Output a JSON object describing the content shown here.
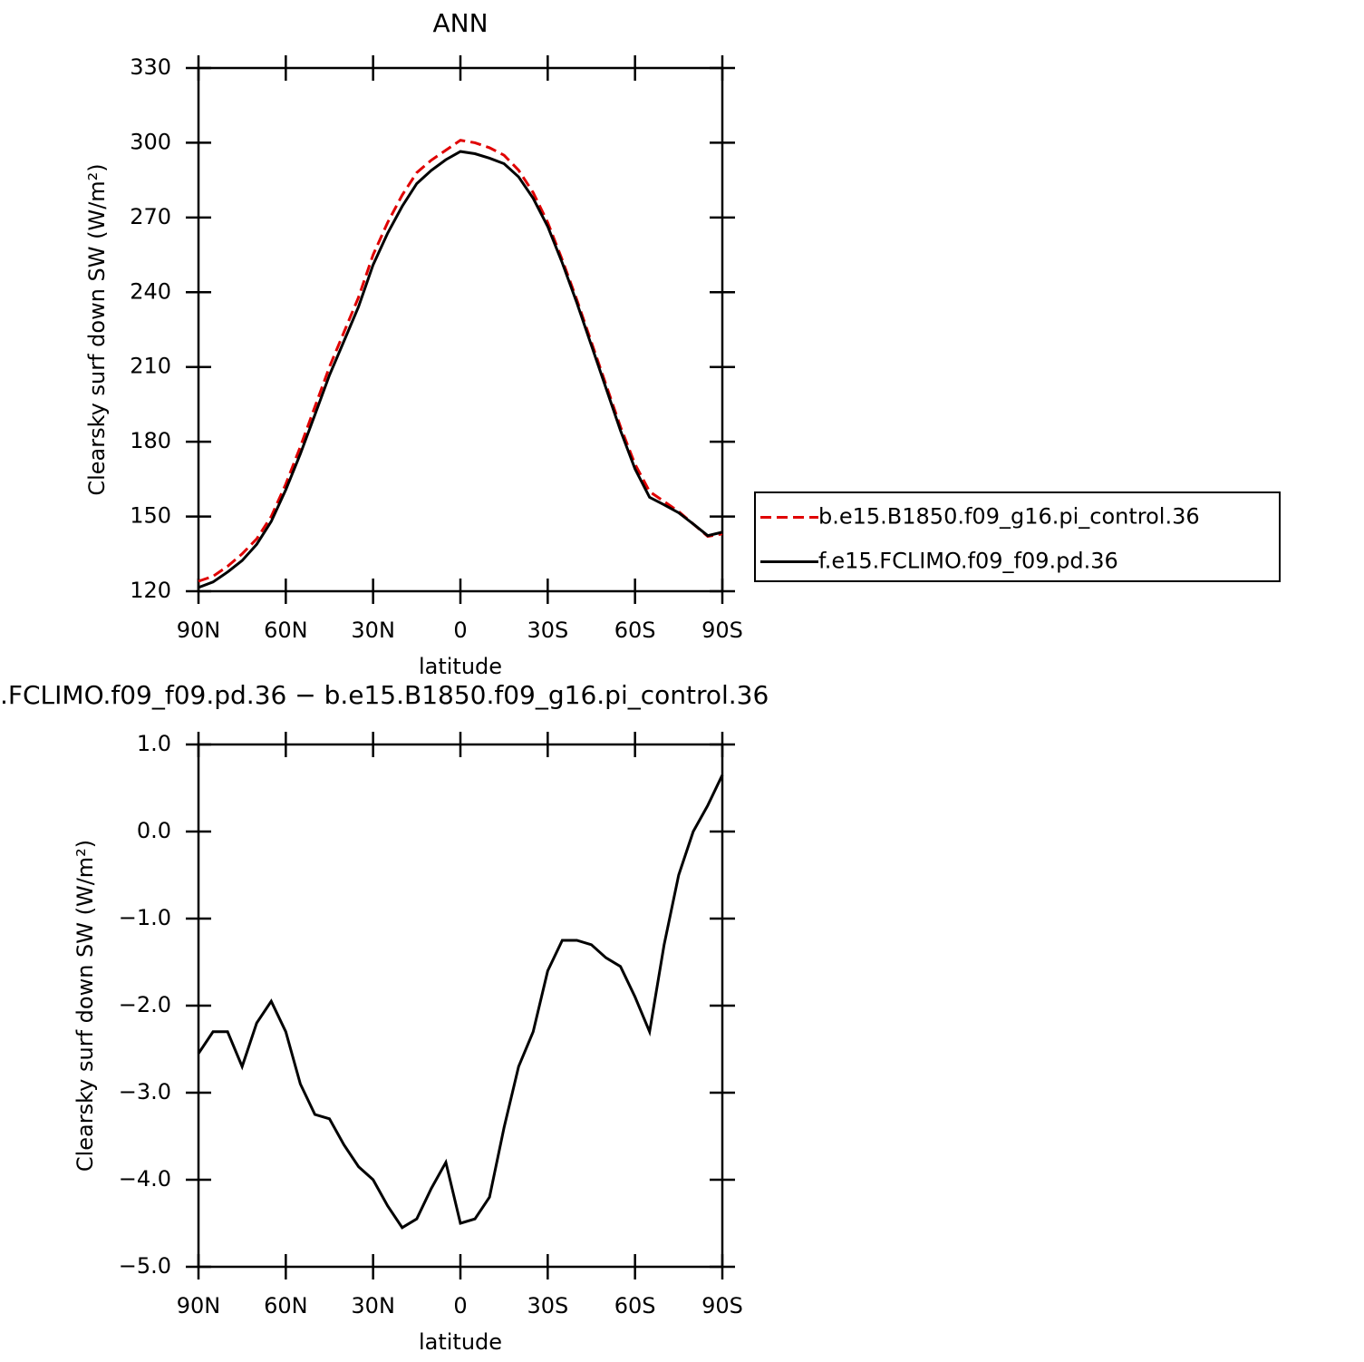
{
  "chart_data": [
    {
      "type": "line",
      "title": "ANN",
      "xlabel": "latitude",
      "ylabel": "Clearsky surf down SW (W/m²)",
      "x": [
        90,
        85,
        80,
        75,
        70,
        65,
        60,
        55,
        50,
        45,
        40,
        35,
        30,
        25,
        20,
        15,
        10,
        5,
        0,
        -5,
        -10,
        -15,
        -20,
        -25,
        -30,
        -35,
        -40,
        -45,
        -50,
        -55,
        -60,
        -65,
        -70,
        -75,
        -80,
        -85,
        -90
      ],
      "xlim": [
        90,
        -90
      ],
      "xticks": [
        {
          "value": 90,
          "label": "90N"
        },
        {
          "value": 60,
          "label": "60N"
        },
        {
          "value": 30,
          "label": "30N"
        },
        0,
        {
          "value": -30,
          "label": "30S"
        },
        {
          "value": -60,
          "label": "60S"
        },
        {
          "value": -90,
          "label": "90S"
        }
      ],
      "ylim": [
        120,
        330
      ],
      "yticks": [
        120,
        150,
        180,
        210,
        240,
        270,
        300,
        330
      ],
      "legend": "right",
      "series": [
        {
          "name": "b.e15.B1850.f09_g16.pi_control.36",
          "color": "#e00000",
          "dash": true,
          "values": [
            124,
            126,
            130,
            135,
            141,
            150,
            163,
            178,
            194,
            210,
            224,
            238,
            255,
            268,
            279,
            288,
            293,
            297,
            301,
            300,
            298,
            295,
            289,
            280,
            268,
            253,
            237,
            220,
            203,
            186,
            171,
            160,
            156,
            152,
            147,
            142,
            143
          ]
        },
        {
          "name": "f.e15.FCLIMO.f09_f09.pd.36",
          "color": "#000000",
          "dash": false,
          "values": [
            121.5,
            123.7,
            127.7,
            132.3,
            138.8,
            148,
            160.7,
            175.1,
            190.8,
            206.7,
            220.4,
            234.2,
            251,
            263.7,
            274.5,
            283.6,
            288.9,
            293.2,
            296.5,
            295.6,
            293.8,
            291.6,
            286.3,
            277.7,
            266.4,
            251.8,
            235.8,
            218.7,
            201.6,
            184.5,
            169.1,
            157.7,
            154.7,
            151.5,
            147,
            142.3,
            143.7
          ]
        }
      ]
    },
    {
      "type": "line",
      "title": ".FCLIMO.f09_f09.pd.36 − b.e15.B1850.f09_g16.pi_control.36",
      "xlabel": "latitude",
      "ylabel": "Clearsky surf down SW (W/m²)",
      "x": [
        90,
        85,
        80,
        75,
        70,
        65,
        60,
        55,
        50,
        45,
        40,
        35,
        30,
        25,
        20,
        15,
        10,
        5,
        0,
        -5,
        -10,
        -15,
        -20,
        -25,
        -30,
        -35,
        -40,
        -45,
        -50,
        -55,
        -60,
        -65,
        -70,
        -75,
        -80,
        -85,
        -90
      ],
      "xlim": [
        90,
        -90
      ],
      "xticks": [
        {
          "value": 90,
          "label": "90N"
        },
        {
          "value": 60,
          "label": "60N"
        },
        {
          "value": 30,
          "label": "30N"
        },
        0,
        {
          "value": -30,
          "label": "30S"
        },
        {
          "value": -60,
          "label": "60S"
        },
        {
          "value": -90,
          "label": "90S"
        }
      ],
      "ylim": [
        -5,
        1
      ],
      "yticks": [
        {
          "value": -5,
          "label": "−5.0"
        },
        {
          "value": -4,
          "label": "−4.0"
        },
        {
          "value": -3,
          "label": "−3.0"
        },
        {
          "value": -2,
          "label": "−2.0"
        },
        {
          "value": -1,
          "label": "−1.0"
        },
        {
          "value": 0,
          "label": "0.0"
        },
        {
          "value": 1,
          "label": "1.0"
        }
      ],
      "series": [
        {
          "color": "#000000",
          "dash": false,
          "values": [
            -2.55,
            -2.3,
            -2.3,
            -2.7,
            -2.2,
            -1.95,
            -2.3,
            -2.9,
            -3.25,
            -3.3,
            -3.6,
            -3.85,
            -4.0,
            -4.3,
            -4.55,
            -4.45,
            -4.1,
            -3.8,
            -4.5,
            -4.45,
            -4.2,
            -3.4,
            -2.7,
            -2.3,
            -1.6,
            -1.25,
            -1.25,
            -1.3,
            -1.45,
            -1.55,
            -1.9,
            -2.3,
            -1.3,
            -0.5,
            0.0,
            0.3,
            0.65
          ]
        }
      ]
    }
  ]
}
